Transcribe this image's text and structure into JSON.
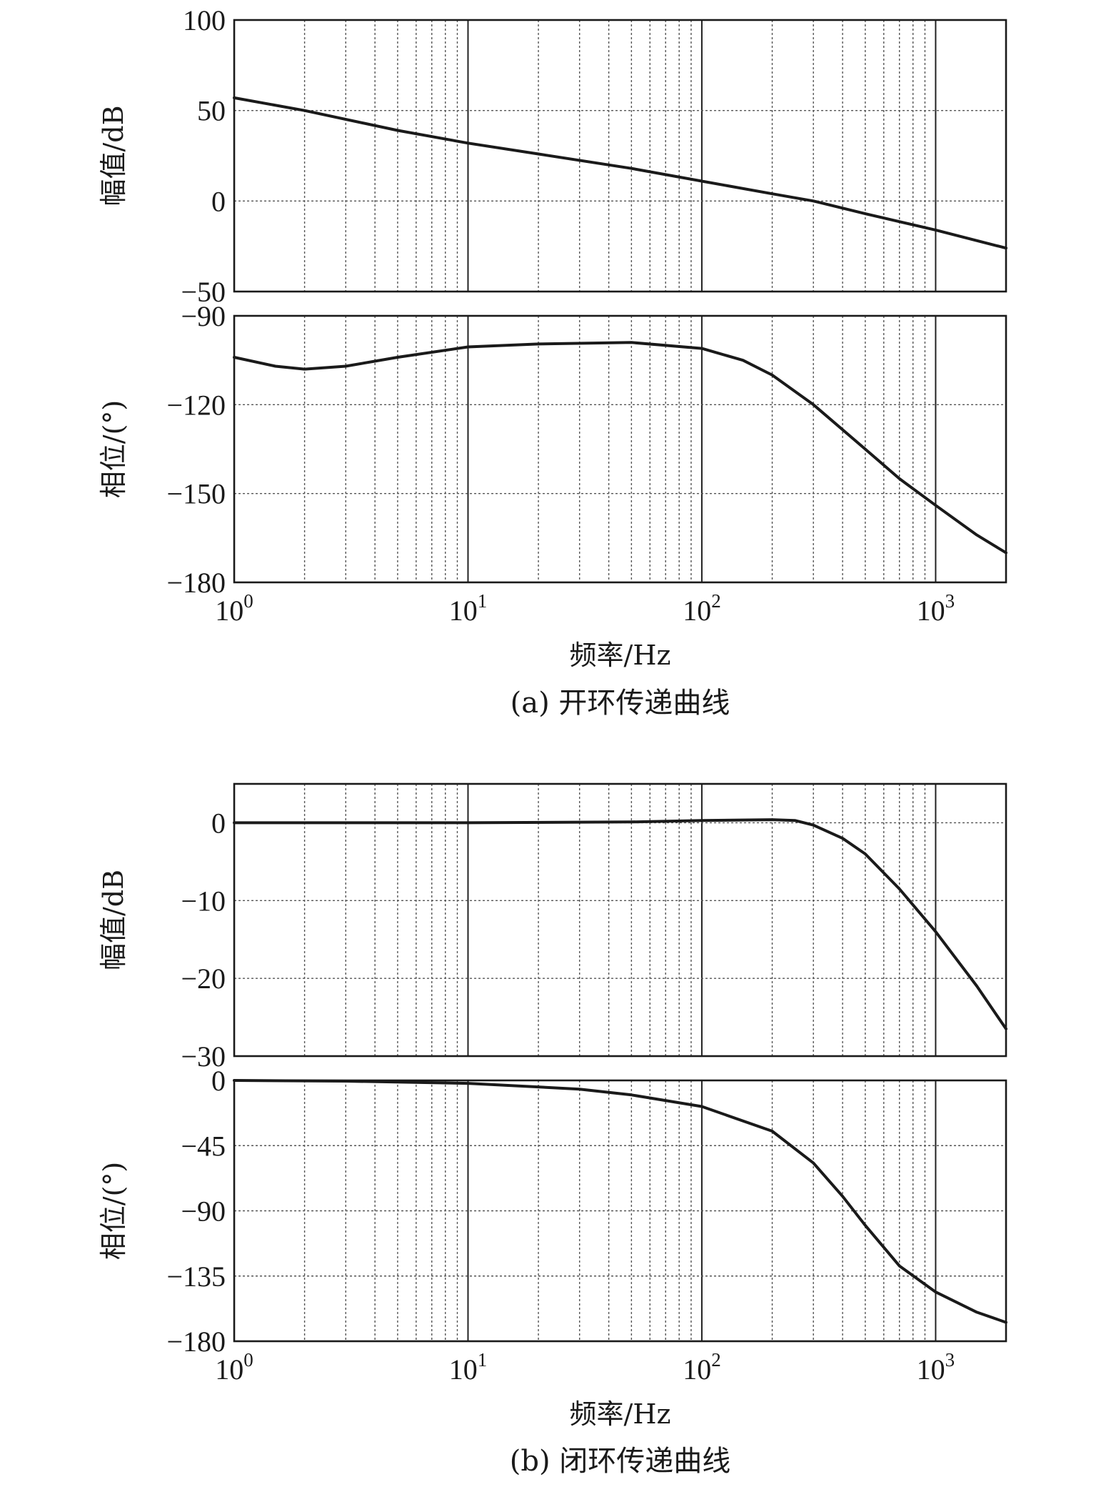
{
  "chart_data": [
    {
      "type": "line",
      "caption": "(a) 开环传递曲线",
      "xlabel": "频率/Hz",
      "x_scale": "log",
      "xlim": [
        1,
        2000
      ],
      "x_tick_labels": [
        {
          "base": "10",
          "exp": "0"
        },
        {
          "base": "10",
          "exp": "1"
        },
        {
          "base": "10",
          "exp": "2"
        },
        {
          "base": "10",
          "exp": "3"
        }
      ],
      "grid": true,
      "magnitude": {
        "ylabel": "幅值/dB",
        "ylim": [
          -50,
          100
        ],
        "yticks": [
          "100",
          "50",
          "0",
          "−50"
        ],
        "series": [
          {
            "x": [
              1,
              2,
              5,
              10,
              20,
              50,
              100,
              200,
              300,
              500,
              1000,
              2000
            ],
            "y": [
              57,
              50,
              39,
              32,
              26,
              18,
              11,
              4,
              0,
              -7,
              -16,
              -26
            ]
          }
        ]
      },
      "phase": {
        "ylabel": "相位/(°)",
        "ylim": [
          -180,
          -90
        ],
        "yticks": [
          "−90",
          "−120",
          "−150",
          "−180"
        ],
        "series": [
          {
            "x": [
              1,
              1.5,
              2,
              3,
              5,
              10,
              20,
              50,
              100,
              150,
              200,
              300,
              500,
              700,
              1000,
              1500,
              2000
            ],
            "y": [
              -104,
              -107,
              -108,
              -107,
              -104,
              -100.5,
              -99.5,
              -99,
              -101,
              -105,
              -110,
              -120,
              -135,
              -145,
              -154,
              -164,
              -170
            ]
          }
        ]
      }
    },
    {
      "type": "line",
      "caption": "(b) 闭环传递曲线",
      "xlabel": "频率/Hz",
      "x_scale": "log",
      "xlim": [
        1,
        2000
      ],
      "x_tick_labels": [
        {
          "base": "10",
          "exp": "0"
        },
        {
          "base": "10",
          "exp": "1"
        },
        {
          "base": "10",
          "exp": "2"
        },
        {
          "base": "10",
          "exp": "3"
        }
      ],
      "grid": true,
      "magnitude": {
        "ylabel": "幅值/dB",
        "ylim": [
          -30,
          5
        ],
        "yticks": [
          "0",
          "−10",
          "−20",
          "−30"
        ],
        "series": [
          {
            "x": [
              1,
              10,
              50,
              100,
              200,
              250,
              300,
              400,
              500,
              700,
              1000,
              1500,
              2000
            ],
            "y": [
              0,
              0,
              0.1,
              0.3,
              0.4,
              0.3,
              -0.3,
              -2,
              -4,
              -8.5,
              -14,
              -21,
              -26.5
            ]
          }
        ]
      },
      "phase": {
        "ylabel": "相位/(°)",
        "ylim": [
          -180,
          0
        ],
        "yticks": [
          "0",
          "−45",
          "−90",
          "−135",
          "−180"
        ],
        "series": [
          {
            "x": [
              1,
              3,
              10,
              30,
              50,
              100,
              200,
              300,
              400,
              500,
              700,
              1000,
              1500,
              2000
            ],
            "y": [
              0,
              -0.5,
              -2,
              -6,
              -10,
              -18,
              -35,
              -57,
              -80,
              -100,
              -128,
              -146,
              -160,
              -167
            ]
          }
        ]
      }
    }
  ]
}
